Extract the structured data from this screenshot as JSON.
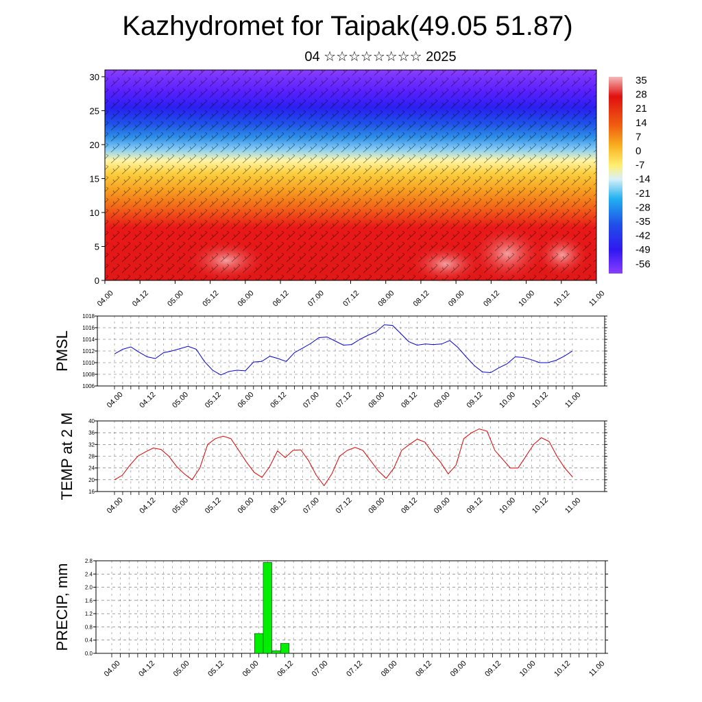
{
  "title": "Kazhydromet for Taipak(49.05 51.87)",
  "subtitle": "04 ☆☆☆☆☆☆☆☆ 2025",
  "colors": {
    "pmsl_line": "#0000cc",
    "temp_line": "#dd0000",
    "precip_bar": "#00ee00",
    "grid": "#000000"
  },
  "chart_data": [
    {
      "type": "heatmap",
      "name": "cross-section",
      "yticks": [
        "0",
        "5",
        "10",
        "15",
        "20",
        "25",
        "30"
      ],
      "ylim": [
        0,
        31
      ],
      "xticks": [
        "04.00",
        "04.12",
        "05.00",
        "05.12",
        "06.00",
        "06.12",
        "07.00",
        "07.12",
        "08.00",
        "08.12",
        "09.00",
        "09.12",
        "10.00",
        "10.12",
        "11.00"
      ],
      "colorbar_labels": [
        "35",
        "28",
        "21",
        "14",
        "7",
        "0",
        "-7",
        "-14",
        "-21",
        "-28",
        "-35",
        "-42",
        "-49",
        "-56"
      ],
      "colorbar_range": [
        -63,
        38
      ],
      "description_levels": "temperature by level with wind barbs"
    },
    {
      "type": "line",
      "ylabel": "PMSL",
      "ylim": [
        1006,
        1018
      ],
      "yticks": [
        "1006",
        "1008",
        "1010",
        "1012",
        "1014",
        "1016",
        "1018"
      ],
      "xticks": [
        "04.00",
        "04.12",
        "05.00",
        "05.12",
        "06.00",
        "06.12",
        "07.00",
        "07.12",
        "08.00",
        "08.12",
        "09.00",
        "09.12",
        "10.00",
        "10.12",
        "11.00"
      ],
      "values": [
        1011.5,
        1012.3,
        1012.7,
        1011.8,
        1011.0,
        1010.7,
        1011.7,
        1012.0,
        1012.4,
        1012.8,
        1012.3,
        1010.2,
        1008.7,
        1007.9,
        1008.5,
        1008.7,
        1008.6,
        1010.1,
        1010.2,
        1011.1,
        1010.7,
        1010.2,
        1011.7,
        1012.5,
        1013.3,
        1014.3,
        1014.4,
        1013.7,
        1013.0,
        1013.1,
        1014.0,
        1014.7,
        1015.3,
        1016.5,
        1016.4,
        1015.0,
        1013.6,
        1013.0,
        1013.2,
        1013.1,
        1013.2,
        1013.8,
        1012.6,
        1011.0,
        1009.5,
        1008.4,
        1008.3,
        1009.1,
        1009.8,
        1011.0,
        1010.9,
        1010.5,
        1010.0,
        1010.0,
        1010.4,
        1011.1,
        1012.0
      ]
    },
    {
      "type": "line",
      "ylabel": "TEMP at 2 M",
      "ylim": [
        16,
        40
      ],
      "yticks": [
        "16",
        "20",
        "24",
        "28",
        "32",
        "36",
        "40"
      ],
      "xticks": [
        "04.00",
        "04.12",
        "05.00",
        "05.12",
        "06.00",
        "06.12",
        "07.00",
        "07.12",
        "08.00",
        "08.12",
        "09.00",
        "09.12",
        "10.00",
        "10.12",
        "11.00"
      ],
      "values": [
        20.0,
        21.5,
        25.0,
        28.0,
        29.5,
        30.8,
        30.3,
        28.0,
        24.5,
        22.0,
        20.0,
        24.0,
        32.0,
        34.0,
        34.8,
        34.0,
        30.0,
        26.0,
        22.5,
        20.8,
        24.5,
        29.8,
        27.5,
        30.0,
        30.2,
        26.5,
        21.5,
        18.0,
        22.0,
        28.0,
        30.0,
        31.0,
        30.0,
        26.5,
        23.0,
        20.5,
        24.0,
        30.0,
        32.0,
        33.8,
        32.8,
        29.0,
        26.0,
        22.0,
        25.0,
        34.0,
        36.0,
        37.3,
        36.5,
        30.0,
        27.0,
        24.0,
        24.0,
        28.0,
        32.0,
        34.3,
        33.0,
        28.0,
        24.0,
        21.0
      ]
    },
    {
      "type": "bar",
      "ylabel": "PRECIP, mm",
      "ylim": [
        0,
        2.8
      ],
      "yticks": [
        "0.0",
        "0.4",
        "0.8",
        "1.2",
        "1.6",
        "2.0",
        "2.4",
        "2.8"
      ],
      "xticks": [
        "04.00",
        "04.12",
        "05.00",
        "05.12",
        "06.00",
        "06.12",
        "07.00",
        "07.12",
        "08.00",
        "08.12",
        "09.00",
        "09.12",
        "10.00",
        "10.12",
        "11.00"
      ],
      "bars": [
        {
          "x": "06.03",
          "value": 0.6
        },
        {
          "x": "06.06",
          "value": 2.75
        },
        {
          "x": "06.09",
          "value": 0.08
        },
        {
          "x": "06.12",
          "value": 0.3
        }
      ]
    }
  ]
}
